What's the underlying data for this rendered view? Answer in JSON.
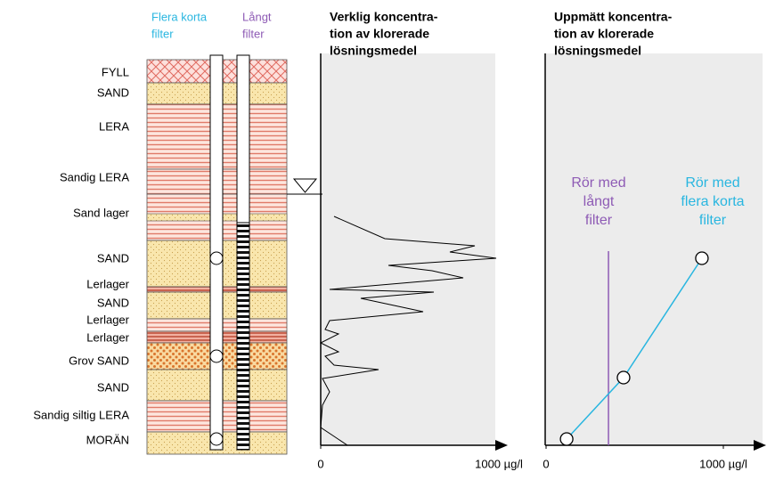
{
  "header": {
    "short_filter": [
      "Flera korta",
      "filter"
    ],
    "long_filter": [
      "Långt",
      "filter"
    ]
  },
  "layers": [
    "FYLL",
    "SAND",
    "LERA",
    "Sandig LERA",
    "Sand lager",
    "SAND",
    "Lerlager",
    "SAND",
    "Lerlager",
    "Lerlager",
    "Grov SAND",
    "SAND",
    "Sandig siltig LERA",
    "MORÄN"
  ],
  "profile": {
    "title": [
      "Verklig koncentra-",
      "tion av klorerade",
      "lösningsmedel"
    ],
    "xlim": [
      0,
      1000
    ],
    "xticks": [
      0,
      {
        "value": 1000,
        "label": "1000 µg/l"
      }
    ],
    "values": [
      75,
      360,
      865,
      725,
      985,
      380,
      625,
      800,
      50,
      635,
      225,
      575,
      50,
      25,
      100,
      0,
      100,
      25,
      75,
      325,
      10,
      50,
      10,
      0,
      75,
      150
    ]
  },
  "measured": {
    "title": [
      "Uppmätt koncentra-",
      "tion av klorerade",
      "lösningsmedel"
    ],
    "xlim": [
      0,
      1000
    ],
    "xticks": [
      0,
      {
        "value": 1000,
        "label": "1000 µg/l"
      }
    ],
    "long_filter": {
      "label": [
        "Rör med",
        "långt",
        "filter"
      ],
      "value": 352,
      "color": "#8e5bb5"
    },
    "short_filters": {
      "label": [
        "Rör med",
        "flera korta",
        "filter"
      ],
      "values": [
        116,
        437,
        879
      ],
      "color": "#29b6e0"
    }
  }
}
